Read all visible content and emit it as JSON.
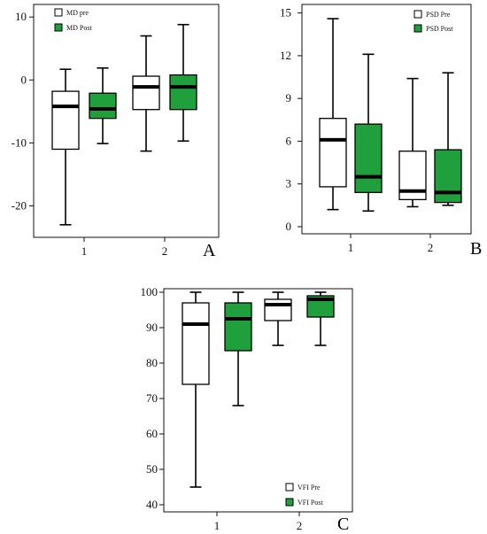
{
  "colors": {
    "pre": "#ffffff",
    "post": "#1fa03c",
    "stroke": "#000000"
  },
  "chart_data": [
    {
      "type": "box",
      "panel_label": "A",
      "categories": [
        "1",
        "2"
      ],
      "ylim": [
        -25,
        12
      ],
      "yticks": [
        "10",
        "0",
        "-10",
        "-20"
      ],
      "ytick_values": [
        10,
        0,
        -10,
        -20
      ],
      "legend_placement": "top-left",
      "grid": false,
      "series": [
        {
          "name": "MD pre",
          "color_key": "pre",
          "boxes": [
            {
              "min": -23,
              "q1": -11,
              "median": -4.2,
              "q3": -1.8,
              "max": 1.7
            },
            {
              "min": -11.3,
              "q1": -4.7,
              "median": -1.1,
              "q3": 0.6,
              "max": 7
            }
          ]
        },
        {
          "name": "MD Post",
          "color_key": "post",
          "boxes": [
            {
              "min": -10.1,
              "q1": -6.1,
              "median": -4.6,
              "q3": -2.1,
              "max": 1.9
            },
            {
              "min": -9.7,
              "q1": -4.7,
              "median": -1.1,
              "q3": 0.8,
              "max": 8.8
            }
          ]
        }
      ]
    },
    {
      "type": "box",
      "panel_label": "B",
      "categories": [
        "1",
        "2"
      ],
      "ylim": [
        -0.5,
        15.6
      ],
      "yticks": [
        "15",
        "12",
        "9",
        "6",
        "3",
        "0"
      ],
      "ytick_values": [
        15,
        12,
        9,
        6,
        3,
        0
      ],
      "legend_placement": "top-right",
      "grid": false,
      "series": [
        {
          "name": "PSD Pre",
          "color_key": "pre",
          "boxes": [
            {
              "min": 1.2,
              "q1": 2.8,
              "median": 6.1,
              "q3": 7.6,
              "max": 14.6
            },
            {
              "min": 1.4,
              "q1": 1.9,
              "median": 2.5,
              "q3": 5.3,
              "max": 10.4
            }
          ]
        },
        {
          "name": "PSD Post",
          "color_key": "post",
          "boxes": [
            {
              "min": 1.1,
              "q1": 2.4,
              "median": 3.5,
              "q3": 7.2,
              "max": 12.1
            },
            {
              "min": 1.5,
              "q1": 1.7,
              "median": 2.4,
              "q3": 5.4,
              "max": 10.8
            }
          ]
        }
      ]
    },
    {
      "type": "box",
      "panel_label": "C",
      "categories": [
        "1",
        "2"
      ],
      "ylim": [
        38,
        101
      ],
      "yticks": [
        "100",
        "90",
        "80",
        "70",
        "60",
        "50",
        "40"
      ],
      "ytick_values": [
        100,
        90,
        80,
        70,
        60,
        50,
        40
      ],
      "legend_placement": "bottom-right",
      "grid": false,
      "series": [
        {
          "name": "VFI Pre",
          "color_key": "pre",
          "boxes": [
            {
              "min": 45,
              "q1": 74,
              "median": 91,
              "q3": 97,
              "max": 100
            },
            {
              "min": 85,
              "q1": 92,
              "median": 96.5,
              "q3": 98,
              "max": 100
            }
          ]
        },
        {
          "name": "VFI Post",
          "color_key": "post",
          "boxes": [
            {
              "min": 68,
              "q1": 83.5,
              "median": 92.5,
              "q3": 97,
              "max": 100
            },
            {
              "min": 85,
              "q1": 93,
              "median": 98,
              "q3": 99,
              "max": 100
            }
          ]
        }
      ]
    }
  ]
}
